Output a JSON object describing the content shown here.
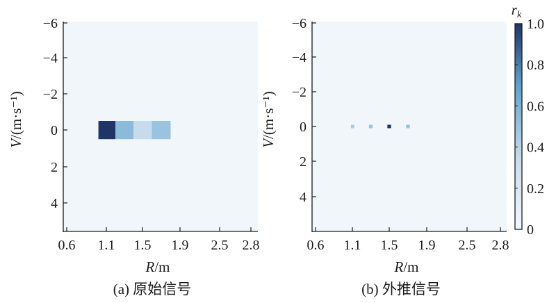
{
  "chart_data": [
    {
      "type": "heatmap",
      "caption": "(a) 原始信号",
      "xlabel_var": "R",
      "xlabel_unit": "/m",
      "ylabel_var": "V",
      "ylabel_unit": "/(m·s⁻¹)",
      "x_tick_labels": [
        "0.6",
        "1.1",
        "1.5",
        "1.9",
        "2.5",
        "2.8"
      ],
      "y_tick_labels": [
        "−6",
        "−4",
        "−2",
        "0",
        "2",
        "4"
      ],
      "xlim": [
        0.5,
        2.8
      ],
      "ylim": [
        -6,
        5.5
      ],
      "y_inverted": true,
      "background_value": 0.02,
      "cells": [
        {
          "r_start": 1.0,
          "r_end": 1.2,
          "v_start": -0.5,
          "v_end": 0.5,
          "value": 1.0
        },
        {
          "r_start": 1.2,
          "r_end": 1.4,
          "v_start": -0.5,
          "v_end": 0.5,
          "value": 0.55
        },
        {
          "r_start": 1.4,
          "r_end": 1.6,
          "v_start": -0.5,
          "v_end": 0.5,
          "value": 0.35
        },
        {
          "r_start": 1.6,
          "r_end": 1.8,
          "v_start": -0.5,
          "v_end": 0.5,
          "value": 0.5
        }
      ]
    },
    {
      "type": "heatmap",
      "caption": "(b) 外推信号",
      "xlabel_var": "R",
      "xlabel_unit": "/m",
      "ylabel_var": "V",
      "ylabel_unit": "/(m·s⁻¹)",
      "x_tick_labels": [
        "0.6",
        "1.1",
        "1.5",
        "1.9",
        "2.5",
        "2.8"
      ],
      "y_tick_labels": [
        "−6",
        "−4",
        "−2",
        "0",
        "2",
        "4"
      ],
      "xlim": [
        0.5,
        2.8
      ],
      "ylim": [
        -6,
        5.5
      ],
      "y_inverted": true,
      "background_value": 0.02,
      "cells": [
        {
          "r_start": 1.08,
          "r_end": 1.12,
          "v_start": -0.1,
          "v_end": 0.1,
          "value": 0.45
        },
        {
          "r_start": 1.28,
          "r_end": 1.32,
          "v_start": -0.1,
          "v_end": 0.1,
          "value": 0.5
        },
        {
          "r_start": 1.48,
          "r_end": 1.52,
          "v_start": -0.1,
          "v_end": 0.1,
          "value": 1.0
        },
        {
          "r_start": 1.68,
          "r_end": 1.72,
          "v_start": -0.1,
          "v_end": 0.1,
          "value": 0.5
        }
      ]
    }
  ],
  "colorbar": {
    "label_var": "r",
    "label_sub": "k",
    "range": [
      0,
      1
    ],
    "tick_labels": [
      "0",
      "0.2",
      "0.4",
      "0.6",
      "0.8",
      "1.0"
    ],
    "colors": [
      "#f4f8fc",
      "#c6dcec",
      "#5fa2cd",
      "#1f3566"
    ]
  }
}
